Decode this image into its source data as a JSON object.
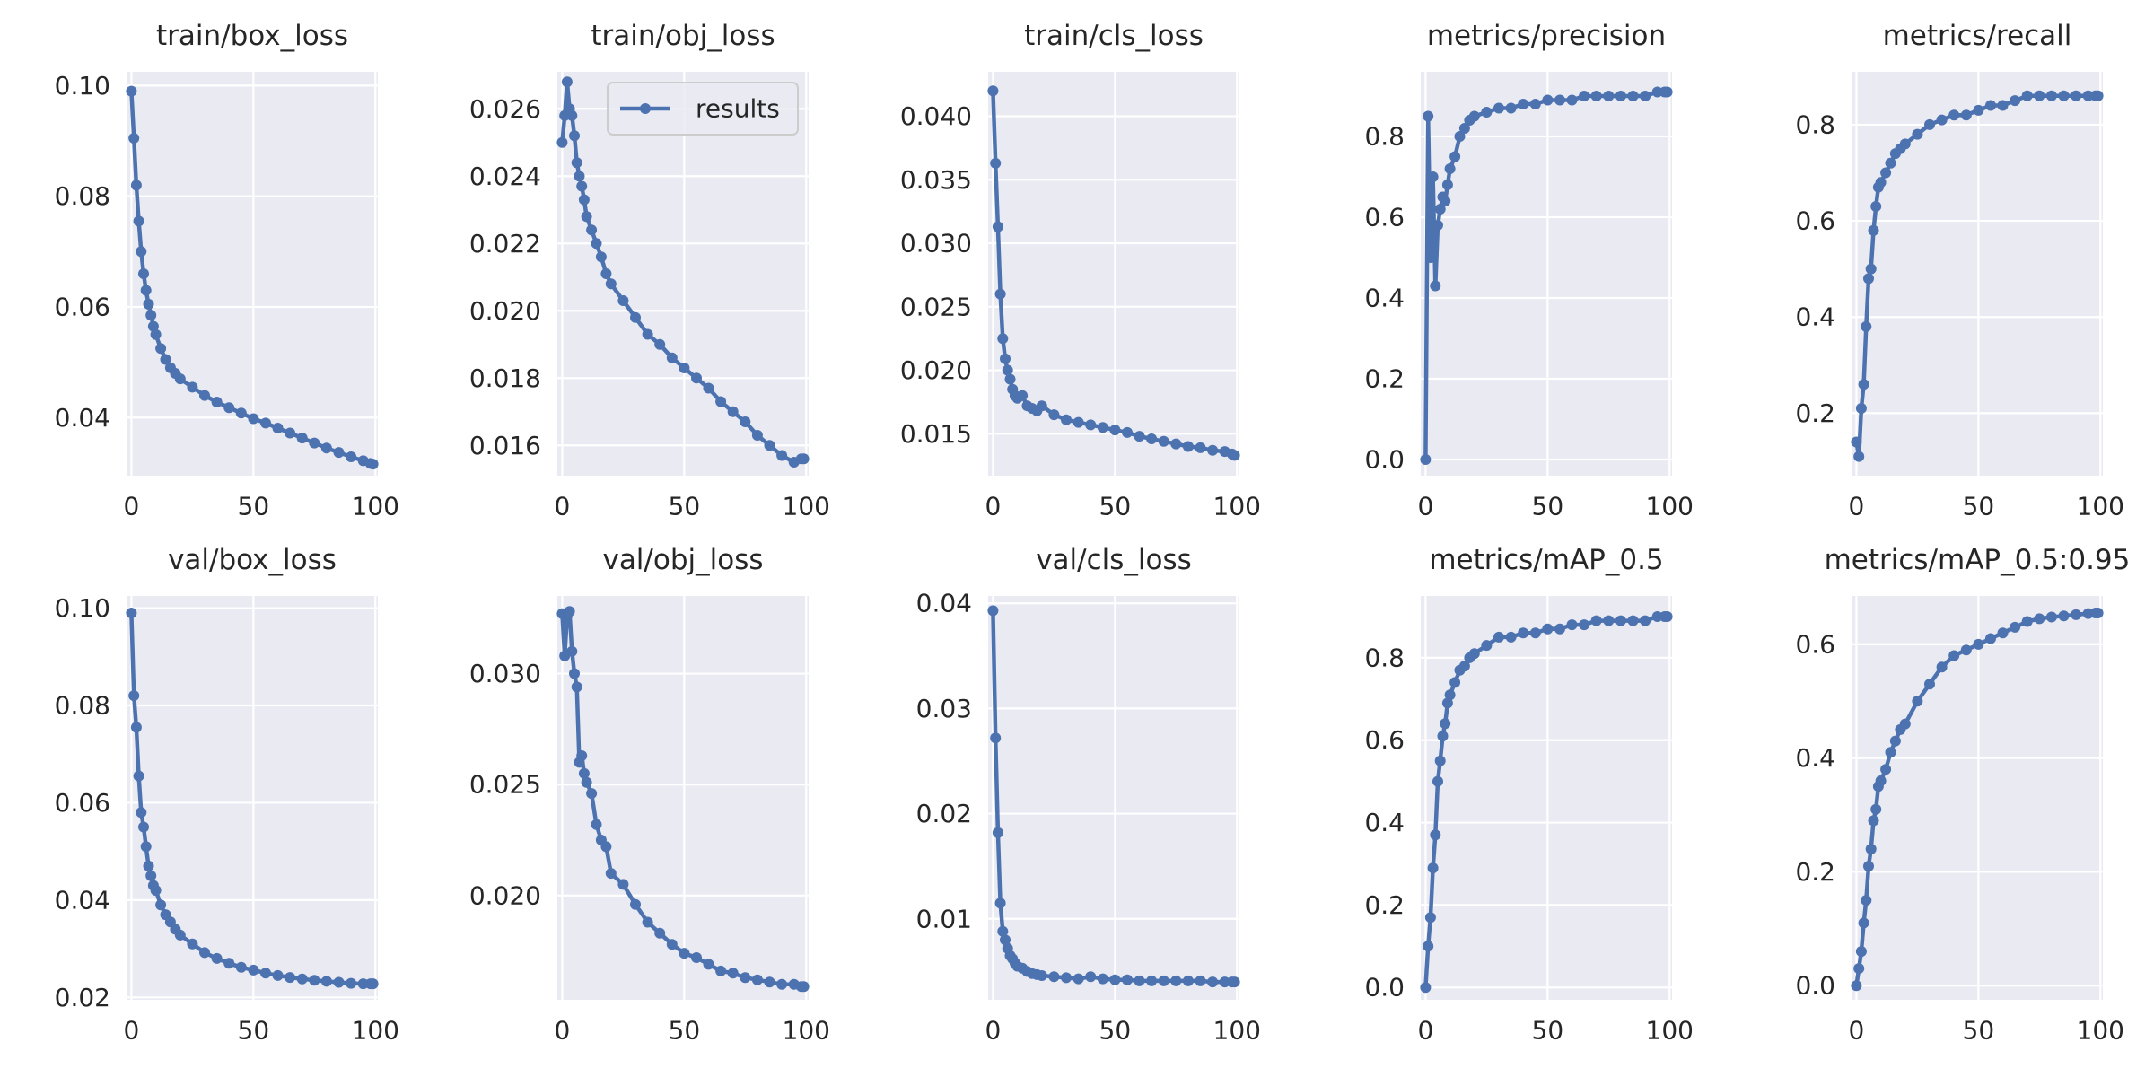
{
  "colors": {
    "line": "#4c72b0",
    "plot_bg": "#eaeaf2",
    "grid": "#ffffff",
    "text": "#262626",
    "page_bg": "#ffffff"
  },
  "legend": {
    "label": "results",
    "panel": "train/obj_loss",
    "loc": "upper right"
  },
  "chart_data": [
    {
      "type": "line",
      "title": "train/box_loss",
      "xlim": [
        -2,
        101
      ],
      "ylim": [
        0.0295,
        0.1025
      ],
      "xticks": [
        0,
        50,
        100
      ],
      "xticklabels": [
        "0",
        "50",
        "100"
      ],
      "yticks": [
        0.04,
        0.06,
        0.08,
        0.1
      ],
      "yticklabels": [
        "0.04",
        "0.06",
        "0.08",
        "0.10"
      ],
      "series": [
        {
          "name": "results",
          "x": [
            0,
            1,
            2,
            3,
            4,
            5,
            6,
            7,
            8,
            9,
            10,
            12,
            14,
            16,
            18,
            20,
            25,
            30,
            35,
            40,
            45,
            50,
            55,
            60,
            65,
            70,
            75,
            80,
            85,
            90,
            95,
            98,
            99
          ],
          "y": [
            0.099,
            0.0905,
            0.082,
            0.0755,
            0.07,
            0.066,
            0.063,
            0.0605,
            0.0585,
            0.0565,
            0.055,
            0.0525,
            0.0505,
            0.049,
            0.048,
            0.047,
            0.0455,
            0.044,
            0.0428,
            0.0418,
            0.0408,
            0.0398,
            0.039,
            0.0381,
            0.0372,
            0.0363,
            0.0354,
            0.0345,
            0.0337,
            0.0329,
            0.0322,
            0.0317,
            0.0316
          ]
        }
      ]
    },
    {
      "type": "line",
      "title": "train/obj_loss",
      "xlim": [
        -2,
        101
      ],
      "ylim": [
        0.0151,
        0.0271
      ],
      "xticks": [
        0,
        50,
        100
      ],
      "xticklabels": [
        "0",
        "50",
        "100"
      ],
      "yticks": [
        0.016,
        0.018,
        0.02,
        0.022,
        0.024,
        0.026
      ],
      "yticklabels": [
        "0.016",
        "0.018",
        "0.020",
        "0.022",
        "0.024",
        "0.026"
      ],
      "series": [
        {
          "name": "results",
          "x": [
            0,
            1,
            2,
            3,
            4,
            5,
            6,
            7,
            8,
            9,
            10,
            12,
            14,
            16,
            18,
            20,
            25,
            30,
            35,
            40,
            45,
            50,
            55,
            60,
            65,
            70,
            75,
            80,
            85,
            90,
            95,
            98,
            99
          ],
          "y": [
            0.025,
            0.0258,
            0.0268,
            0.026,
            0.0258,
            0.0252,
            0.0244,
            0.024,
            0.0237,
            0.0233,
            0.0228,
            0.0224,
            0.022,
            0.0216,
            0.0211,
            0.0208,
            0.0203,
            0.0198,
            0.0193,
            0.019,
            0.0186,
            0.0183,
            0.018,
            0.0177,
            0.0173,
            0.017,
            0.0167,
            0.0163,
            0.016,
            0.0157,
            0.0155,
            0.0156,
            0.0156
          ]
        }
      ]
    },
    {
      "type": "line",
      "title": "train/cls_loss",
      "xlim": [
        -2,
        101
      ],
      "ylim": [
        0.0117,
        0.0435
      ],
      "xticks": [
        0,
        50,
        100
      ],
      "xticklabels": [
        "0",
        "50",
        "100"
      ],
      "yticks": [
        0.015,
        0.02,
        0.025,
        0.03,
        0.035,
        0.04
      ],
      "yticklabels": [
        "0.015",
        "0.020",
        "0.025",
        "0.030",
        "0.035",
        "0.040"
      ],
      "series": [
        {
          "name": "results",
          "x": [
            0,
            1,
            2,
            3,
            4,
            5,
            6,
            7,
            8,
            9,
            10,
            12,
            14,
            16,
            18,
            20,
            25,
            30,
            35,
            40,
            45,
            50,
            55,
            60,
            65,
            70,
            75,
            80,
            85,
            90,
            95,
            98,
            99
          ],
          "y": [
            0.042,
            0.0363,
            0.0313,
            0.026,
            0.0225,
            0.0209,
            0.02,
            0.0193,
            0.0185,
            0.018,
            0.0178,
            0.018,
            0.0172,
            0.017,
            0.0168,
            0.0172,
            0.0165,
            0.0161,
            0.0159,
            0.0157,
            0.0155,
            0.0153,
            0.0151,
            0.0148,
            0.0146,
            0.0144,
            0.0142,
            0.014,
            0.0139,
            0.0137,
            0.0136,
            0.0134,
            0.0133
          ]
        }
      ]
    },
    {
      "type": "line",
      "title": "metrics/precision",
      "xlim": [
        -2,
        101
      ],
      "ylim": [
        -0.04,
        0.96
      ],
      "xticks": [
        0,
        50,
        100
      ],
      "xticklabels": [
        "0",
        "50",
        "100"
      ],
      "yticks": [
        0.0,
        0.2,
        0.4,
        0.6,
        0.8
      ],
      "yticklabels": [
        "0.0",
        "0.2",
        "0.4",
        "0.6",
        "0.8"
      ],
      "series": [
        {
          "name": "results",
          "x": [
            0,
            1,
            2,
            3,
            4,
            5,
            6,
            7,
            8,
            9,
            10,
            12,
            14,
            16,
            18,
            20,
            25,
            30,
            35,
            40,
            45,
            50,
            55,
            60,
            65,
            70,
            75,
            80,
            85,
            90,
            95,
            98,
            99
          ],
          "y": [
            0.0,
            0.85,
            0.5,
            0.7,
            0.43,
            0.58,
            0.62,
            0.65,
            0.64,
            0.68,
            0.72,
            0.75,
            0.8,
            0.82,
            0.84,
            0.85,
            0.86,
            0.87,
            0.87,
            0.88,
            0.88,
            0.89,
            0.89,
            0.89,
            0.9,
            0.9,
            0.9,
            0.9,
            0.9,
            0.9,
            0.91,
            0.91,
            0.91
          ]
        }
      ]
    },
    {
      "type": "line",
      "title": "metrics/recall",
      "xlim": [
        -2,
        101
      ],
      "ylim": [
        0.07,
        0.91
      ],
      "xticks": [
        0,
        50,
        100
      ],
      "xticklabels": [
        "0",
        "50",
        "100"
      ],
      "yticks": [
        0.2,
        0.4,
        0.6,
        0.8
      ],
      "yticklabels": [
        "0.2",
        "0.4",
        "0.6",
        "0.8"
      ],
      "series": [
        {
          "name": "results",
          "x": [
            0,
            1,
            2,
            3,
            4,
            5,
            6,
            7,
            8,
            9,
            10,
            12,
            14,
            16,
            18,
            20,
            25,
            30,
            35,
            40,
            45,
            50,
            55,
            60,
            65,
            70,
            75,
            80,
            85,
            90,
            95,
            98,
            99
          ],
          "y": [
            0.14,
            0.11,
            0.21,
            0.26,
            0.38,
            0.48,
            0.5,
            0.58,
            0.63,
            0.67,
            0.68,
            0.7,
            0.72,
            0.74,
            0.75,
            0.76,
            0.78,
            0.8,
            0.81,
            0.82,
            0.82,
            0.83,
            0.84,
            0.84,
            0.85,
            0.86,
            0.86,
            0.86,
            0.86,
            0.86,
            0.86,
            0.86,
            0.86
          ]
        }
      ]
    },
    {
      "type": "line",
      "title": "val/box_loss",
      "xlim": [
        -2,
        101
      ],
      "ylim": [
        0.0195,
        0.1025
      ],
      "xticks": [
        0,
        50,
        100
      ],
      "xticklabels": [
        "0",
        "50",
        "100"
      ],
      "yticks": [
        0.02,
        0.04,
        0.06,
        0.08,
        0.1
      ],
      "yticklabels": [
        "0.02",
        "0.04",
        "0.06",
        "0.08",
        "0.10"
      ],
      "series": [
        {
          "name": "results",
          "x": [
            0,
            1,
            2,
            3,
            4,
            5,
            6,
            7,
            8,
            9,
            10,
            12,
            14,
            16,
            18,
            20,
            25,
            30,
            35,
            40,
            45,
            50,
            55,
            60,
            65,
            70,
            75,
            80,
            85,
            90,
            95,
            98,
            99
          ],
          "y": [
            0.099,
            0.082,
            0.0755,
            0.0655,
            0.058,
            0.055,
            0.051,
            0.047,
            0.045,
            0.043,
            0.042,
            0.039,
            0.037,
            0.0355,
            0.034,
            0.0328,
            0.031,
            0.0292,
            0.028,
            0.027,
            0.0262,
            0.0256,
            0.025,
            0.0245,
            0.0241,
            0.0238,
            0.0235,
            0.0233,
            0.0231,
            0.0229,
            0.0228,
            0.0228,
            0.0228
          ]
        }
      ]
    },
    {
      "type": "line",
      "title": "val/obj_loss",
      "xlim": [
        -2,
        101
      ],
      "ylim": [
        0.0153,
        0.0335
      ],
      "xticks": [
        0,
        50,
        100
      ],
      "xticklabels": [
        "0",
        "50",
        "100"
      ],
      "yticks": [
        0.02,
        0.025,
        0.03
      ],
      "yticklabels": [
        "0.020",
        "0.025",
        "0.030"
      ],
      "series": [
        {
          "name": "results",
          "x": [
            0,
            1,
            2,
            3,
            4,
            5,
            6,
            7,
            8,
            9,
            10,
            12,
            14,
            16,
            18,
            20,
            25,
            30,
            35,
            40,
            45,
            50,
            55,
            60,
            65,
            70,
            75,
            80,
            85,
            90,
            95,
            98,
            99
          ],
          "y": [
            0.0327,
            0.0308,
            0.0326,
            0.0328,
            0.031,
            0.03,
            0.0294,
            0.026,
            0.0263,
            0.0255,
            0.0251,
            0.0246,
            0.0232,
            0.0225,
            0.0222,
            0.021,
            0.0205,
            0.0196,
            0.0188,
            0.0183,
            0.0178,
            0.0174,
            0.0172,
            0.0169,
            0.0166,
            0.0165,
            0.0163,
            0.0162,
            0.0161,
            0.016,
            0.016,
            0.0159,
            0.0159
          ]
        }
      ]
    },
    {
      "type": "line",
      "title": "val/cls_loss",
      "xlim": [
        -2,
        101
      ],
      "ylim": [
        0.0023,
        0.0407
      ],
      "xticks": [
        0,
        50,
        100
      ],
      "xticklabels": [
        "0",
        "50",
        "100"
      ],
      "yticks": [
        0.01,
        0.02,
        0.03,
        0.04
      ],
      "yticklabels": [
        "0.01",
        "0.02",
        "0.03",
        "0.04"
      ],
      "series": [
        {
          "name": "results",
          "x": [
            0,
            1,
            2,
            3,
            4,
            5,
            6,
            7,
            8,
            9,
            10,
            12,
            14,
            16,
            18,
            20,
            25,
            30,
            35,
            40,
            45,
            50,
            55,
            60,
            65,
            70,
            75,
            80,
            85,
            90,
            95,
            98,
            99
          ],
          "y": [
            0.0393,
            0.0272,
            0.0182,
            0.0115,
            0.0088,
            0.008,
            0.0072,
            0.0065,
            0.0062,
            0.0058,
            0.0055,
            0.0053,
            0.005,
            0.0048,
            0.0047,
            0.0046,
            0.0045,
            0.0044,
            0.0043,
            0.0045,
            0.0043,
            0.0042,
            0.0042,
            0.0041,
            0.0041,
            0.0041,
            0.0041,
            0.0041,
            0.0041,
            0.004,
            0.004,
            0.004,
            0.004
          ]
        }
      ]
    },
    {
      "type": "line",
      "title": "metrics/mAP_0.5",
      "xlim": [
        -2,
        101
      ],
      "ylim": [
        -0.03,
        0.95
      ],
      "xticks": [
        0,
        50,
        100
      ],
      "xticklabels": [
        "0",
        "50",
        "100"
      ],
      "yticks": [
        0.0,
        0.2,
        0.4,
        0.6,
        0.8
      ],
      "yticklabels": [
        "0.0",
        "0.2",
        "0.4",
        "0.6",
        "0.8"
      ],
      "series": [
        {
          "name": "results",
          "x": [
            0,
            1,
            2,
            3,
            4,
            5,
            6,
            7,
            8,
            9,
            10,
            12,
            14,
            16,
            18,
            20,
            25,
            30,
            35,
            40,
            45,
            50,
            55,
            60,
            65,
            70,
            75,
            80,
            85,
            90,
            95,
            98,
            99
          ],
          "y": [
            0.0,
            0.1,
            0.17,
            0.29,
            0.37,
            0.5,
            0.55,
            0.61,
            0.64,
            0.69,
            0.71,
            0.74,
            0.77,
            0.78,
            0.8,
            0.81,
            0.83,
            0.85,
            0.85,
            0.86,
            0.86,
            0.87,
            0.87,
            0.88,
            0.88,
            0.89,
            0.89,
            0.89,
            0.89,
            0.89,
            0.9,
            0.9,
            0.9
          ]
        }
      ]
    },
    {
      "type": "line",
      "title": "metrics/mAP_0.5:0.95",
      "xlim": [
        -2,
        101
      ],
      "ylim": [
        -0.025,
        0.685
      ],
      "xticks": [
        0,
        50,
        100
      ],
      "xticklabels": [
        "0",
        "50",
        "100"
      ],
      "yticks": [
        0.0,
        0.2,
        0.4,
        0.6
      ],
      "yticklabels": [
        "0.0",
        "0.2",
        "0.4",
        "0.6"
      ],
      "series": [
        {
          "name": "results",
          "x": [
            0,
            1,
            2,
            3,
            4,
            5,
            6,
            7,
            8,
            9,
            10,
            12,
            14,
            16,
            18,
            20,
            25,
            30,
            35,
            40,
            45,
            50,
            55,
            60,
            65,
            70,
            75,
            80,
            85,
            90,
            95,
            98,
            99
          ],
          "y": [
            0.0,
            0.03,
            0.06,
            0.11,
            0.15,
            0.21,
            0.24,
            0.29,
            0.31,
            0.35,
            0.36,
            0.38,
            0.41,
            0.43,
            0.45,
            0.46,
            0.5,
            0.53,
            0.56,
            0.58,
            0.59,
            0.6,
            0.61,
            0.62,
            0.63,
            0.64,
            0.645,
            0.648,
            0.65,
            0.652,
            0.654,
            0.655,
            0.655
          ]
        }
      ]
    }
  ]
}
